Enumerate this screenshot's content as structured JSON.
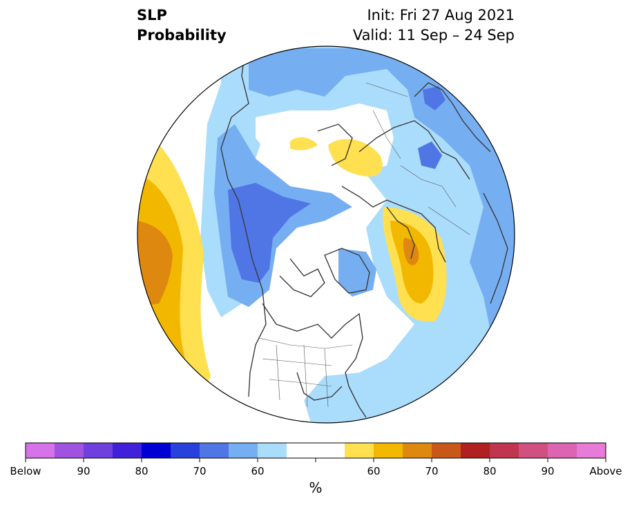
{
  "header": {
    "title_line1": "SLP",
    "title_line2": "Probability",
    "init": "Init: Fri 27 Aug 2021",
    "valid": "Valid: 11 Sep – 24 Sep"
  },
  "colorbar": {
    "unit": "%",
    "colors": [
      "#d673e8",
      "#a052e0",
      "#7040de",
      "#4020d8",
      "#0000d4",
      "#2840dc",
      "#5076e6",
      "#76aef2",
      "#aadcfc",
      "#ffffff",
      "#ffffff",
      "#ffe050",
      "#f2b800",
      "#de8810",
      "#c85818",
      "#b02020",
      "#c03650",
      "#d05080",
      "#dc64b2",
      "#e87ad8"
    ],
    "tick_labels": [
      "Below",
      "90",
      "80",
      "70",
      "60",
      "60",
      "70",
      "80",
      "90",
      "Above"
    ]
  },
  "map": {
    "projection": "north polar stereographic",
    "palette": {
      "ocean": "#ffffff",
      "blue_light": "#aadcfc",
      "blue_mid": "#76aef2",
      "blue_dark": "#5076e6",
      "yellow": "#ffe050",
      "orange": "#f2b800",
      "dark_orange": "#de8810",
      "coast": "#3a3a3a"
    }
  }
}
